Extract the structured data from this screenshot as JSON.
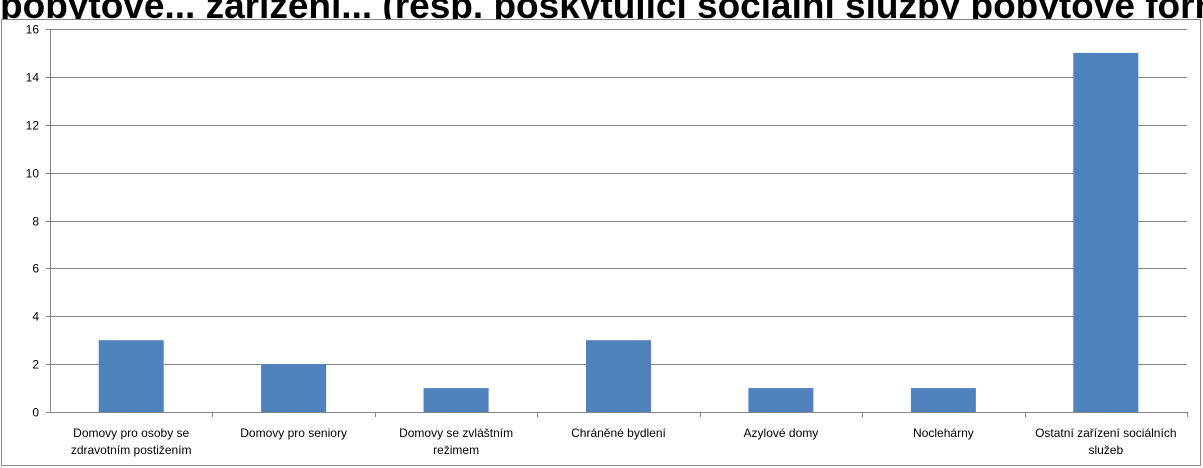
{
  "chart_data": {
    "type": "bar",
    "title": "pobytové... zařízení... (resp. poskytující sociální služby pobytové formy)",
    "categories": [
      [
        "Domovy pro osoby se",
        "zdravotním postižením"
      ],
      [
        "Domovy pro seniory"
      ],
      [
        "Domovy se zvláštním",
        "režimem"
      ],
      [
        "Chráněné bydlení"
      ],
      [
        "Azylové domy"
      ],
      [
        "Noclehárny"
      ],
      [
        "Ostatní zařízení sociálních",
        "služeb"
      ]
    ],
    "values": [
      3,
      2,
      1,
      3,
      1,
      1,
      15
    ],
    "ylim": [
      0,
      16
    ],
    "yticks": [
      "0",
      "2",
      "4",
      "6",
      "8",
      "10",
      "12",
      "14",
      "16"
    ],
    "grid": true,
    "bar_color": "#4f81bd",
    "grid_color": "#868686",
    "xlabel": "",
    "ylabel": ""
  }
}
